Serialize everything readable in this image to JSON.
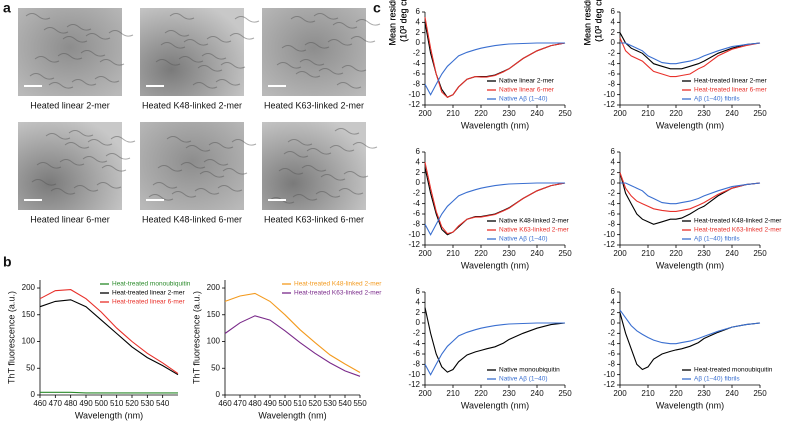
{
  "panel_labels": [
    "a",
    "b",
    "c"
  ],
  "micrographs": [
    {
      "caption": "Heated linear 2-mer"
    },
    {
      "caption": "Heated K48-linked 2-mer"
    },
    {
      "caption": "Heated K63-linked 2-mer"
    },
    {
      "caption": "Heated linear 6-mer"
    },
    {
      "caption": "Heated K48-linked 6-mer"
    },
    {
      "caption": "Heated K63-linked 6-mer"
    }
  ],
  "chart_data": [
    {
      "type": "line",
      "xlabel": "Wavelength (nm)",
      "ylabel": "ThT fluorescence (a.u.)",
      "x": [
        460,
        470,
        480,
        490,
        500,
        510,
        520,
        530,
        540,
        550
      ],
      "xlim": [
        460,
        550
      ],
      "xticks": [
        460,
        470,
        480,
        490,
        500,
        510,
        520,
        530,
        540
      ],
      "ylim": [
        0,
        215
      ],
      "yticks": [
        0,
        50,
        100,
        150,
        200
      ],
      "legend": "upper right",
      "series": [
        {
          "name": "Heat-treated monoubiquitin",
          "color": "#2a8a2a",
          "values": [
            5,
            5,
            5,
            4,
            4,
            4,
            4,
            4,
            4,
            4
          ]
        },
        {
          "name": "Heat-treated linear 2-mer",
          "color": "#000000",
          "values": [
            165,
            175,
            178,
            165,
            140,
            115,
            90,
            70,
            55,
            38
          ]
        },
        {
          "name": "Heat-treated linear 6-mer",
          "color": "#e8302a",
          "values": [
            180,
            195,
            197,
            180,
            155,
            125,
            100,
            78,
            60,
            40
          ]
        }
      ]
    },
    {
      "type": "line",
      "xlabel": "Wavelength (nm)",
      "ylabel": "ThT fluorescence (a.u.)",
      "x": [
        460,
        470,
        480,
        490,
        500,
        510,
        520,
        530,
        540,
        550
      ],
      "xlim": [
        460,
        550
      ],
      "xticks": [
        460,
        470,
        480,
        490,
        500,
        510,
        520,
        530,
        540,
        550
      ],
      "ylim": [
        0,
        215
      ],
      "yticks": [
        0,
        50,
        100,
        150,
        200
      ],
      "legend": "upper right",
      "series": [
        {
          "name": "Heat-treated K48-linked 2-mer",
          "color": "#f39a1e",
          "values": [
            175,
            185,
            190,
            175,
            150,
            122,
            98,
            75,
            58,
            42
          ]
        },
        {
          "name": "Heat-treated K63-linked 2-mer",
          "color": "#7a2a8a",
          "values": [
            115,
            135,
            148,
            140,
            120,
            98,
            78,
            60,
            45,
            35
          ]
        }
      ]
    },
    {
      "type": "line",
      "xlabel": "Wavelength (nm)",
      "ylabel": [
        "Mean residue ellipticity",
        "(10³ deg cm² dmol⁻¹)"
      ],
      "x": [
        200,
        202,
        204,
        206,
        208,
        210,
        212,
        215,
        218,
        220,
        222,
        225,
        228,
        230,
        235,
        240,
        245,
        250
      ],
      "xlim": [
        200,
        250
      ],
      "xticks": [
        200,
        210,
        220,
        230,
        240,
        250
      ],
      "ylim": [
        -12,
        6
      ],
      "yticks": [
        -12,
        -10,
        -8,
        -6,
        -4,
        -2,
        0,
        2,
        4,
        6
      ],
      "legend": "lower right",
      "series": [
        {
          "name": "Native linear 2-mer",
          "color": "#000000",
          "values": [
            4,
            -2,
            -6,
            -9,
            -10.5,
            -10,
            -8.5,
            -7,
            -6.5,
            -6.5,
            -6.5,
            -6.2,
            -5.5,
            -5,
            -3,
            -1.5,
            -0.5,
            0
          ]
        },
        {
          "name": "Native linear 6-mer",
          "color": "#e8302a",
          "values": [
            5,
            -1,
            -6,
            -9.5,
            -10.5,
            -10,
            -8.5,
            -7,
            -6.5,
            -6.6,
            -6.6,
            -6.3,
            -5.6,
            -5,
            -3,
            -1.5,
            -0.5,
            0
          ]
        },
        {
          "name": "Native Aβ (1–40)",
          "color": "#3a6fd0",
          "values": [
            -8,
            -10,
            -8,
            -6,
            -4.5,
            -3.5,
            -2.5,
            -1.8,
            -1.3,
            -1,
            -0.8,
            -0.5,
            -0.3,
            -0.2,
            -0.1,
            0,
            0,
            0
          ]
        }
      ]
    },
    {
      "type": "line",
      "xlabel": "Wavelength (nm)",
      "ylabel": [
        "Mean residue ellipticity",
        "(10³ deg cm² dmol⁻¹)"
      ],
      "x": [
        200,
        202,
        204,
        206,
        208,
        210,
        212,
        215,
        218,
        220,
        222,
        225,
        228,
        230,
        235,
        240,
        245,
        250
      ],
      "xlim": [
        200,
        250
      ],
      "xticks": [
        200,
        210,
        220,
        230,
        240,
        250
      ],
      "ylim": [
        -12,
        6
      ],
      "yticks": [
        -12,
        -10,
        -8,
        -6,
        -4,
        -2,
        0,
        2,
        4,
        6
      ],
      "legend": "lower right",
      "series": [
        {
          "name": "Heat-treated linear 2-mer",
          "color": "#000000",
          "values": [
            2,
            0,
            -1,
            -1.5,
            -2,
            -3,
            -4,
            -4.5,
            -5,
            -5,
            -5,
            -4.5,
            -4,
            -3.5,
            -2,
            -1,
            -0.3,
            0
          ]
        },
        {
          "name": "Heat-treated linear 6-mer",
          "color": "#e8302a",
          "values": [
            1,
            -1.5,
            -2.5,
            -3,
            -3.5,
            -4.5,
            -5.5,
            -6,
            -6.5,
            -6.5,
            -6.3,
            -6,
            -5,
            -4.5,
            -2.5,
            -1.2,
            -0.5,
            0
          ]
        },
        {
          "name": "Aβ (1–40) fibrils",
          "color": "#3a6fd0",
          "values": [
            0,
            0,
            -0.5,
            -1,
            -1.5,
            -2.5,
            -3,
            -3.8,
            -4,
            -4,
            -3.8,
            -3.5,
            -3,
            -2.5,
            -1.5,
            -0.7,
            -0.3,
            0
          ]
        }
      ]
    },
    {
      "type": "line",
      "xlabel": "Wavelength (nm)",
      "ylabel": [
        "Mean residue ellipticity",
        "(10³ deg cm² dmol⁻¹)"
      ],
      "x": [
        200,
        202,
        204,
        206,
        208,
        210,
        212,
        215,
        218,
        220,
        222,
        225,
        228,
        230,
        235,
        240,
        245,
        250
      ],
      "xlim": [
        200,
        250
      ],
      "xticks": [
        200,
        210,
        220,
        230,
        240,
        250
      ],
      "ylim": [
        -12,
        6
      ],
      "yticks": [
        -12,
        -10,
        -8,
        -6,
        -4,
        -2,
        0,
        2,
        4,
        6
      ],
      "legend": "lower right",
      "series": [
        {
          "name": "Native K48-linked 2-mer",
          "color": "#000000",
          "values": [
            3,
            -2,
            -6,
            -9,
            -10,
            -9.5,
            -8.5,
            -7,
            -6.5,
            -6.5,
            -6.3,
            -6,
            -5.3,
            -4.8,
            -3,
            -1.5,
            -0.5,
            0
          ]
        },
        {
          "name": "Native K63-linked 2-mer",
          "color": "#e8302a",
          "values": [
            4,
            -1,
            -5.5,
            -8.5,
            -9.8,
            -9.5,
            -8.3,
            -7,
            -6.6,
            -6.6,
            -6.4,
            -6.1,
            -5.4,
            -4.9,
            -3,
            -1.5,
            -0.5,
            0
          ]
        },
        {
          "name": "Native Aβ (1–40)",
          "color": "#3a6fd0",
          "values": [
            -8,
            -10,
            -8,
            -6,
            -4.5,
            -3.5,
            -2.5,
            -1.8,
            -1.3,
            -1,
            -0.8,
            -0.5,
            -0.3,
            -0.2,
            -0.1,
            0,
            0,
            0
          ]
        }
      ]
    },
    {
      "type": "line",
      "xlabel": "Wavelength (nm)",
      "ylabel": [
        "Mean residue ellipticity",
        "(10³ deg cm² dmol⁻¹)"
      ],
      "x": [
        200,
        202,
        204,
        206,
        208,
        210,
        212,
        215,
        218,
        220,
        222,
        225,
        228,
        230,
        235,
        240,
        245,
        250
      ],
      "xlim": [
        200,
        250
      ],
      "xticks": [
        200,
        210,
        220,
        230,
        240,
        250
      ],
      "ylim": [
        -12,
        6
      ],
      "yticks": [
        -12,
        -10,
        -8,
        -6,
        -4,
        -2,
        0,
        2,
        4,
        6
      ],
      "legend": "lower right",
      "series": [
        {
          "name": "Heat-treated K48-linked 2-mer",
          "color": "#000000",
          "values": [
            2,
            -2,
            -4,
            -6,
            -7,
            -7.5,
            -8,
            -7.5,
            -7,
            -7,
            -6.8,
            -6,
            -5,
            -4.5,
            -2.5,
            -1,
            -0.3,
            0
          ]
        },
        {
          "name": "Heat-treated K63-linked 2-mer",
          "color": "#e8302a",
          "values": [
            2,
            -1,
            -2.5,
            -3.5,
            -4,
            -4.5,
            -5,
            -5.3,
            -5.5,
            -5.5,
            -5.3,
            -5,
            -4.3,
            -3.8,
            -2.2,
            -1,
            -0.3,
            0
          ]
        },
        {
          "name": "Aβ (1–40) fibrils",
          "color": "#3a6fd0",
          "values": [
            0,
            0,
            -0.5,
            -1,
            -1.5,
            -2.5,
            -3,
            -3.8,
            -4,
            -4,
            -3.8,
            -3.5,
            -3,
            -2.5,
            -1.5,
            -0.7,
            -0.3,
            0
          ]
        }
      ]
    },
    {
      "type": "line",
      "xlabel": "Wavelength (nm)",
      "ylabel": [
        "Mean residue ellipticity",
        "(10³ deg cm² dmol⁻¹)"
      ],
      "x": [
        200,
        202,
        204,
        206,
        208,
        210,
        212,
        215,
        218,
        220,
        222,
        225,
        228,
        230,
        235,
        240,
        245,
        250
      ],
      "xlim": [
        200,
        250
      ],
      "xticks": [
        200,
        210,
        220,
        230,
        240,
        250
      ],
      "ylim": [
        -12,
        6
      ],
      "yticks": [
        -12,
        -10,
        -8,
        -6,
        -4,
        -2,
        0,
        2,
        4,
        6
      ],
      "legend": "lower right",
      "series": [
        {
          "name": "Native monoubiquitin",
          "color": "#000000",
          "values": [
            3,
            -2,
            -6,
            -8.5,
            -9.5,
            -9,
            -7.5,
            -6.2,
            -5.6,
            -5.3,
            -5,
            -4.6,
            -3.9,
            -3.2,
            -2,
            -1,
            -0.3,
            0
          ]
        },
        {
          "name": "Native Aβ (1–40)",
          "color": "#3a6fd0",
          "values": [
            -8,
            -10,
            -8,
            -6,
            -4.5,
            -3.5,
            -2.5,
            -1.8,
            -1.3,
            -1,
            -0.8,
            -0.5,
            -0.3,
            -0.2,
            -0.1,
            0,
            0,
            0
          ]
        }
      ]
    },
    {
      "type": "line",
      "xlabel": "Wavelength (nm)",
      "ylabel": [
        "Mean residue ellipticity",
        "(10³ deg cm² dmol⁻¹)"
      ],
      "x": [
        200,
        202,
        204,
        206,
        208,
        210,
        212,
        215,
        218,
        220,
        222,
        225,
        228,
        230,
        235,
        240,
        245,
        250
      ],
      "xlim": [
        200,
        250
      ],
      "xticks": [
        200,
        210,
        220,
        230,
        240,
        250
      ],
      "ylim": [
        -12,
        6
      ],
      "yticks": [
        -12,
        -10,
        -8,
        -6,
        -4,
        -2,
        0,
        2,
        4,
        6
      ],
      "legend": "lower right",
      "series": [
        {
          "name": "Heat-treated monoubiquitin",
          "color": "#000000",
          "values": [
            2,
            -2,
            -5,
            -8,
            -9,
            -8.5,
            -7,
            -6,
            -5.5,
            -5.2,
            -5,
            -4.5,
            -3.8,
            -3,
            -1.8,
            -0.8,
            -0.3,
            0
          ]
        },
        {
          "name": "Aβ (1–40) fibrils",
          "color": "#3a6fd0",
          "values": [
            2.5,
            1,
            -0.5,
            -1.5,
            -2.2,
            -2.8,
            -3.3,
            -3.8,
            -4,
            -4,
            -3.8,
            -3.5,
            -3,
            -2.6,
            -1.6,
            -0.8,
            -0.3,
            0
          ]
        }
      ]
    }
  ]
}
